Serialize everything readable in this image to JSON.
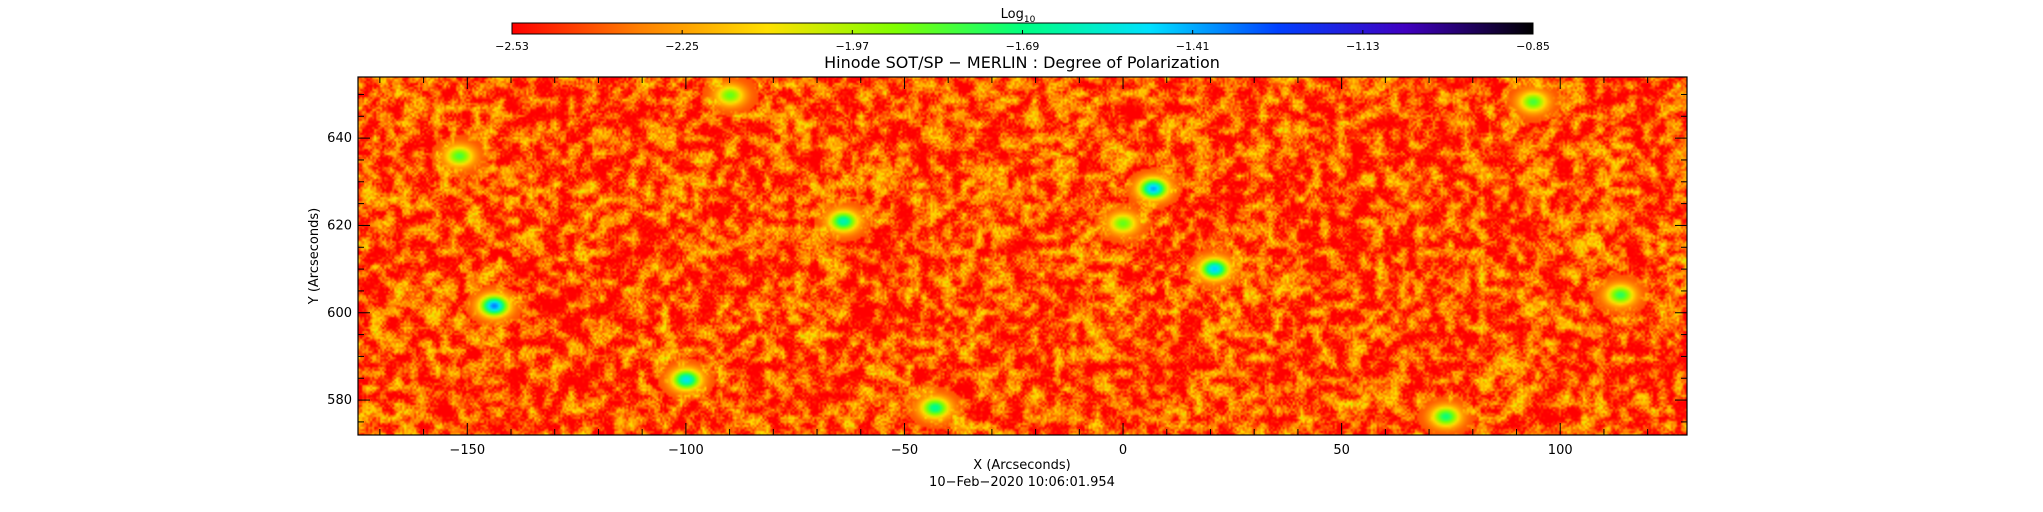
{
  "chart_data": {
    "type": "heatmap",
    "title": "Hinode SOT/SP − MERLIN : Degree of Polarization",
    "xlabel": "X (Arcseconds)",
    "ylabel": "Y (Arcseconds)",
    "timestamp": "10−Feb−2020 10:06:01.954",
    "colorbar": {
      "label": "Log",
      "label_subscript": "10",
      "min": -2.53,
      "max": -0.85,
      "ticks": [
        {
          "label": "−2.53",
          "value": -2.53
        },
        {
          "label": "−2.25",
          "value": -2.25
        },
        {
          "label": "−1.97",
          "value": -1.97
        },
        {
          "label": "−1.69",
          "value": -1.69
        },
        {
          "label": "−1.41",
          "value": -1.41
        },
        {
          "label": "−1.13",
          "value": -1.13
        },
        {
          "label": "−0.85",
          "value": -0.85
        }
      ],
      "colormap": [
        "#ff0000",
        "#ff8000",
        "#ffe000",
        "#80ff00",
        "#00ff80",
        "#00e0ff",
        "#0040ff",
        "#4000c0",
        "#000000"
      ]
    },
    "xlim": [
      -175,
      129
    ],
    "ylim": [
      572,
      654
    ],
    "x_ticks": [
      {
        "label": "−150",
        "value": -150
      },
      {
        "label": "−100",
        "value": -100
      },
      {
        "label": "−50",
        "value": -50
      },
      {
        "label": "0",
        "value": 0
      },
      {
        "label": "50",
        "value": 50
      },
      {
        "label": "100",
        "value": 100
      }
    ],
    "y_ticks": [
      {
        "label": "580",
        "value": 580
      },
      {
        "label": "600",
        "value": 600
      },
      {
        "label": "620",
        "value": 620
      },
      {
        "label": "640",
        "value": 640
      }
    ],
    "typical_value": -2.4,
    "hotspots": [
      {
        "x": -144,
        "y": 601.5,
        "value": -1.35
      },
      {
        "x": -100,
        "y": 584.5,
        "value": -1.5
      },
      {
        "x": -64,
        "y": 621,
        "value": -1.6
      },
      {
        "x": -43,
        "y": 578,
        "value": -1.65
      },
      {
        "x": 7,
        "y": 628.5,
        "value": -1.4
      },
      {
        "x": 21,
        "y": 610,
        "value": -1.45
      },
      {
        "x": 0,
        "y": 620.5,
        "value": -1.85
      },
      {
        "x": 74,
        "y": 576,
        "value": -1.7
      },
      {
        "x": 114,
        "y": 604,
        "value": -1.75
      },
      {
        "x": 94,
        "y": 648.5,
        "value": -1.8
      },
      {
        "x": -152,
        "y": 636,
        "value": -1.8
      },
      {
        "x": -90,
        "y": 650,
        "value": -1.85
      }
    ]
  }
}
